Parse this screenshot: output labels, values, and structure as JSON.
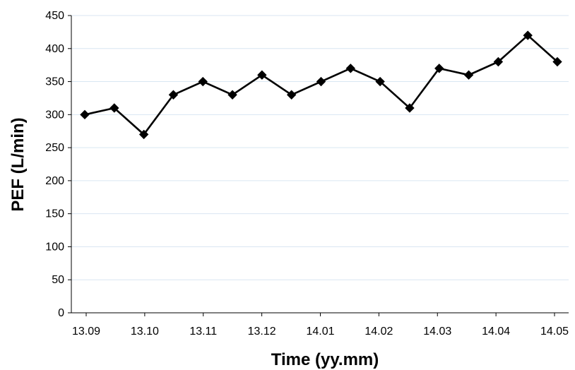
{
  "chart_data": {
    "type": "line",
    "title": "",
    "xlabel": "Time (yy.mm)",
    "ylabel": "PEF (L/min)",
    "ylim": [
      0,
      450
    ],
    "y_ticks": [
      0,
      50,
      100,
      150,
      200,
      250,
      300,
      350,
      400,
      450
    ],
    "x_tick_labels": [
      "13.09",
      "13.10",
      "13.11",
      "13.12",
      "14.01",
      "14.02",
      "14.03",
      "14.04",
      "14.05"
    ],
    "grid": {
      "horizontal": true,
      "vertical": false
    },
    "marker": "diamond",
    "line_color": "#000000",
    "grid_color": "#d9e6f2",
    "series": [
      {
        "values": [
          300,
          310,
          270,
          330,
          350,
          330,
          360,
          330,
          350,
          370,
          350,
          310,
          370,
          360,
          380,
          420,
          380
        ]
      }
    ]
  }
}
